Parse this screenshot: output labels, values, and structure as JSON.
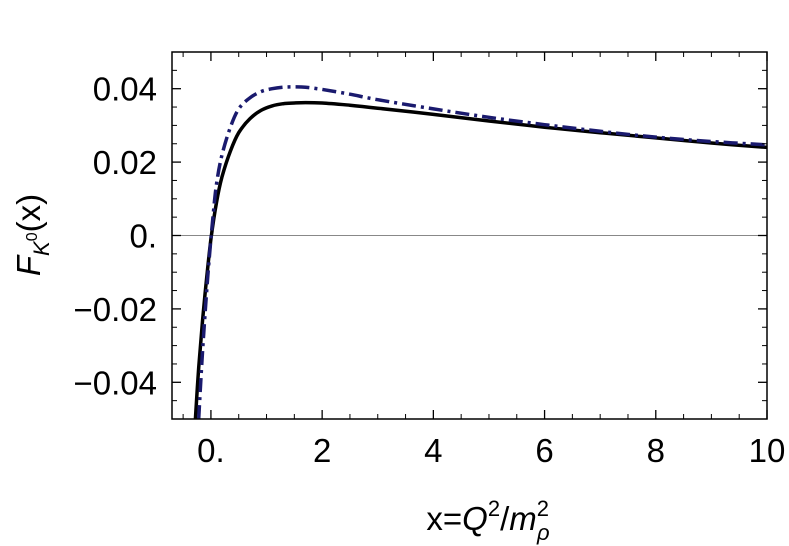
{
  "chart_data": {
    "type": "line",
    "xlim": [
      -0.7,
      10
    ],
    "ylim": [
      -0.05,
      0.05
    ],
    "x_ticks": [
      {
        "value": 0,
        "label": "0."
      },
      {
        "value": 2,
        "label": "2"
      },
      {
        "value": 4,
        "label": "4"
      },
      {
        "value": 6,
        "label": "6"
      },
      {
        "value": 8,
        "label": "8"
      },
      {
        "value": 10,
        "label": "10"
      }
    ],
    "y_ticks": [
      {
        "value": -0.04,
        "label": "−0.04"
      },
      {
        "value": -0.02,
        "label": "−0.02"
      },
      {
        "value": 0,
        "label": "0."
      },
      {
        "value": 0.02,
        "label": "0.02"
      },
      {
        "value": 0.04,
        "label": "0.04"
      }
    ],
    "xlabel": {
      "pre": "x=",
      "q": "Q",
      "q_sup": "2",
      "slash": "/",
      "m": "m",
      "m_sup": "2",
      "m_sub": "ρ"
    },
    "ylabel": {
      "f": "F",
      "k": "K",
      "k_sup": "0",
      "arg": "(x)"
    },
    "zero_line": true,
    "series": [
      {
        "style": "solid",
        "color": "#000000",
        "x": [
          -0.28,
          -0.22,
          -0.15,
          -0.08,
          0.0,
          0.1,
          0.2,
          0.35,
          0.5,
          0.7,
          0.9,
          1.1,
          1.3,
          1.5,
          1.7,
          2.0,
          2.5,
          3.0,
          4.0,
          5.0,
          6.0,
          7.0,
          8.0,
          9.0,
          10.0
        ],
        "y": [
          -0.05,
          -0.036,
          -0.023,
          -0.012,
          -0.001,
          0.009,
          0.016,
          0.023,
          0.028,
          0.0318,
          0.0341,
          0.0353,
          0.0359,
          0.0361,
          0.0362,
          0.0361,
          0.0355,
          0.0347,
          0.033,
          0.0312,
          0.0295,
          0.028,
          0.0266,
          0.0252,
          0.024
        ]
      },
      {
        "style": "dashdot",
        "color": "#1a1a6e",
        "x": [
          -0.22,
          -0.16,
          -0.1,
          -0.04,
          0.03,
          0.1,
          0.2,
          0.35,
          0.5,
          0.7,
          0.9,
          1.1,
          1.3,
          1.5,
          1.7,
          2.0,
          2.5,
          3.0,
          4.0,
          5.0,
          6.0,
          7.0,
          8.0,
          9.0,
          10.0
        ],
        "y": [
          -0.05,
          -0.034,
          -0.02,
          -0.008,
          0.004,
          0.014,
          0.022,
          0.0295,
          0.0345,
          0.0375,
          0.0392,
          0.04,
          0.0404,
          0.0405,
          0.0404,
          0.0398,
          0.0385,
          0.037,
          0.0345,
          0.0322,
          0.0302,
          0.0284,
          0.0268,
          0.0256,
          0.0247
        ]
      }
    ]
  }
}
